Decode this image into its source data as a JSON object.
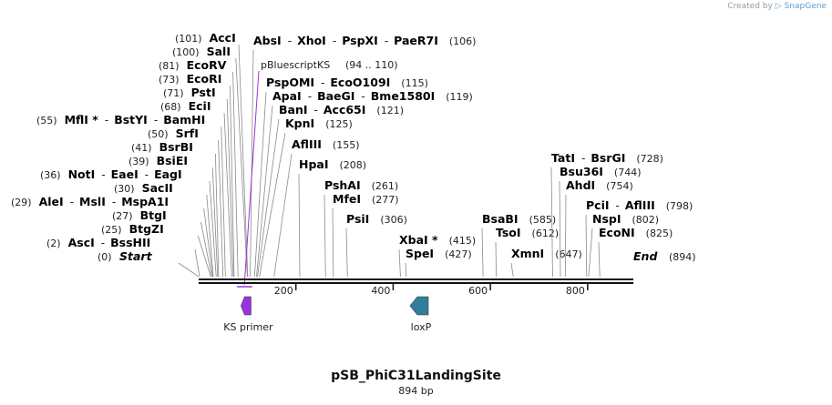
{
  "brand": {
    "created_by": "Created by",
    "app": "SnapGene"
  },
  "title": "pSB_PhiC31LandingSite",
  "length_label": "894 bp",
  "backbone": {
    "length": 894,
    "ticks": [
      200,
      400,
      600,
      800
    ]
  },
  "sites": [
    {
      "names": [
        "AscI",
        "BssHII"
      ],
      "pos": "(2)"
    },
    {
      "names": [
        "BtgZI"
      ],
      "pos": "(25)"
    },
    {
      "names": [
        "BtgI"
      ],
      "pos": "(27)"
    },
    {
      "names": [
        "AleI",
        "MslI",
        "MspA1I"
      ],
      "pos": "(29)"
    },
    {
      "names": [
        "SacII"
      ],
      "pos": "(30)"
    },
    {
      "names": [
        "NotI",
        "EaeI",
        "EagI"
      ],
      "pos": "(36)"
    },
    {
      "names": [
        "BsiEI"
      ],
      "pos": "(39)"
    },
    {
      "names": [
        "BsrBI"
      ],
      "pos": "(41)"
    },
    {
      "names": [
        "SrfI"
      ],
      "pos": "(50)"
    },
    {
      "names": [
        "MflI *",
        "BstYI",
        "BamHI"
      ],
      "pos": "(55)"
    },
    {
      "names": [
        "EciI"
      ],
      "pos": "(68)"
    },
    {
      "names": [
        "PstI"
      ],
      "pos": "(71)"
    },
    {
      "names": [
        "EcoRI"
      ],
      "pos": "(73)"
    },
    {
      "names": [
        "EcoRV"
      ],
      "pos": "(81)"
    },
    {
      "names": [
        "SalI"
      ],
      "pos": "(100)"
    },
    {
      "names": [
        "AccI"
      ],
      "pos": "(101)"
    },
    {
      "names": [
        "AbsI",
        "XhoI",
        "PspXI",
        "PaeR7I"
      ],
      "pos": "(106)"
    },
    {
      "names": [
        "PspOMI",
        "EcoO109I"
      ],
      "pos": "(115)"
    },
    {
      "names": [
        "ApaI",
        "BaeGI",
        "Bme1580I"
      ],
      "pos": "(119)"
    },
    {
      "names": [
        "BanI",
        "Acc65I"
      ],
      "pos": "(121)"
    },
    {
      "names": [
        "KpnI"
      ],
      "pos": "(125)"
    },
    {
      "names": [
        "AflIII"
      ],
      "pos": "(155)"
    },
    {
      "names": [
        "HpaI"
      ],
      "pos": "(208)"
    },
    {
      "names": [
        "PshAI"
      ],
      "pos": "(261)"
    },
    {
      "names": [
        "MfeI"
      ],
      "pos": "(277)"
    },
    {
      "names": [
        "PsiI"
      ],
      "pos": "(306)"
    },
    {
      "names": [
        "XbaI *"
      ],
      "pos": "(415)"
    },
    {
      "names": [
        "SpeI"
      ],
      "pos": "(427)"
    },
    {
      "names": [
        "BsaBI"
      ],
      "pos": "(585)"
    },
    {
      "names": [
        "TsoI"
      ],
      "pos": "(612)"
    },
    {
      "names": [
        "XmnI"
      ],
      "pos": "(647)"
    },
    {
      "names": [
        "TatI",
        "BsrGI"
      ],
      "pos": "(728)"
    },
    {
      "names": [
        "Bsu36I"
      ],
      "pos": "(744)"
    },
    {
      "names": [
        "AhdI"
      ],
      "pos": "(754)"
    },
    {
      "names": [
        "PciI",
        "AflIII"
      ],
      "pos": "(798)"
    },
    {
      "names": [
        "NspI"
      ],
      "pos": "(802)"
    },
    {
      "names": [
        "EcoNI"
      ],
      "pos": "(825)"
    }
  ],
  "markers": {
    "start_label": "Start",
    "start_pos": "(0)",
    "end_label": "End",
    "end_pos": "(894)"
  },
  "primer_binding": {
    "label": "pBluescriptKS",
    "range": "(94 .. 110)",
    "color": "#a030d8"
  },
  "features": [
    {
      "name": "KS primer",
      "start": 94,
      "end": 110,
      "direction": "forward",
      "color": "#9b30e0"
    },
    {
      "name": "loxP",
      "start": 437,
      "end": 470,
      "direction": "reverse",
      "color": "#2f7f9a"
    }
  ]
}
